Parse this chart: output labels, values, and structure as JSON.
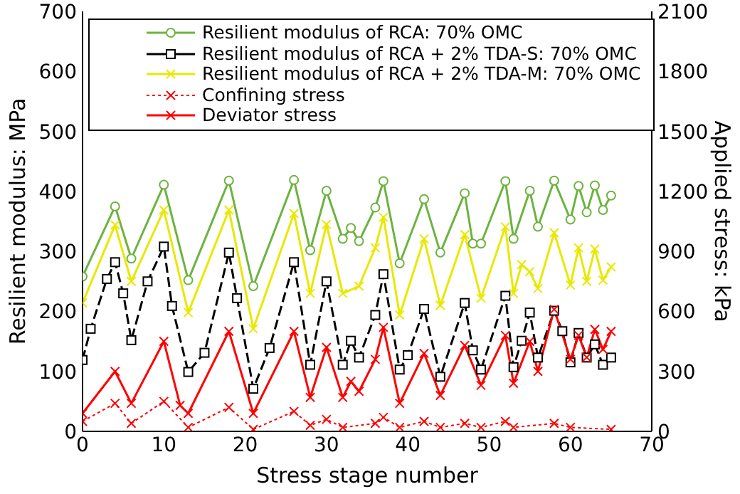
{
  "chart_data": {
    "type": "line",
    "xlabel": "Stress stage number",
    "ylabel": "Resilient modulus: MPa",
    "y2label": "Applied stress: kPa",
    "xlim": [
      0,
      70
    ],
    "xticks": [
      0,
      10,
      20,
      30,
      40,
      50,
      60,
      70
    ],
    "ylim": [
      0,
      700
    ],
    "yticks": [
      0,
      100,
      200,
      300,
      400,
      500,
      600,
      700
    ],
    "y2lim": [
      0,
      2100
    ],
    "y2ticks": [
      0,
      300,
      600,
      900,
      1200,
      1500,
      1800,
      2100
    ],
    "legend": "top",
    "grid": false,
    "series": [
      {
        "name": "Resilient modulus of RCA: 70% OMC",
        "color": "#6cb33f",
        "marker": "circle",
        "line_style": "solid",
        "x": [
          0,
          4,
          6,
          10,
          13,
          18,
          21,
          26,
          28,
          30,
          32,
          33,
          34,
          36,
          37,
          39,
          42,
          44,
          47,
          48,
          49,
          52,
          53,
          55,
          56,
          58,
          60,
          61,
          62,
          63,
          64,
          65
        ],
        "values": [
          258,
          375,
          288,
          411,
          252,
          418,
          242,
          419,
          302,
          401,
          321,
          339,
          317,
          373,
          417,
          280,
          387,
          298,
          397,
          313,
          313,
          417,
          321,
          401,
          341,
          418,
          353,
          409,
          365,
          410,
          369,
          393
        ]
      },
      {
        "name": "Resilient modulus of RCA + 2% TDA-S: 70% OMC",
        "color": "#000000",
        "marker": "square",
        "line_style": "dashed",
        "x": [
          0,
          1,
          3,
          4,
          5,
          6,
          8,
          10,
          11,
          13,
          15,
          18,
          19,
          21,
          23,
          26,
          28,
          30,
          32,
          33,
          34,
          36,
          37,
          39,
          40,
          42,
          44,
          47,
          48,
          49,
          52,
          53,
          54,
          55,
          56,
          58,
          59,
          60,
          61,
          62,
          63,
          64,
          65
        ],
        "values": [
          119,
          171,
          254,
          282,
          230,
          152,
          250,
          308,
          209,
          99,
          131,
          298,
          222,
          71,
          139,
          282,
          111,
          250,
          111,
          151,
          123,
          194,
          262,
          103,
          127,
          204,
          91,
          214,
          135,
          103,
          226,
          107,
          151,
          198,
          123,
          201,
          167,
          115,
          164,
          123,
          145,
          111,
          123
        ]
      },
      {
        "name": "Resilient modulus of RCA + 2% TDA-M: 70% OMC",
        "color": "#e8e800",
        "marker": "cross",
        "line_style": "solid",
        "x": [
          0,
          4,
          6,
          10,
          13,
          18,
          21,
          26,
          28,
          30,
          32,
          34,
          36,
          37,
          39,
          42,
          44,
          47,
          49,
          52,
          53,
          54,
          55,
          56,
          58,
          60,
          61,
          62,
          63,
          64,
          65
        ],
        "values": [
          214,
          344,
          250,
          369,
          198,
          369,
          171,
          363,
          230,
          345,
          230,
          242,
          306,
          357,
          194,
          321,
          210,
          328,
          222,
          341,
          230,
          278,
          266,
          238,
          331,
          244,
          306,
          250,
          304,
          252,
          274
        ]
      },
      {
        "name": "Confining stress",
        "color": "#ff0000",
        "marker": "cross",
        "line_style": "dotted",
        "axis": "y2",
        "x": [
          0,
          4,
          6,
          10,
          13,
          18,
          21,
          26,
          28,
          30,
          32,
          36,
          37,
          39,
          42,
          44,
          47,
          49,
          52,
          53,
          58,
          60,
          65
        ],
        "values": [
          50,
          140,
          40,
          150,
          20,
          120,
          10,
          100,
          30,
          60,
          20,
          40,
          70,
          20,
          50,
          20,
          40,
          20,
          50,
          20,
          40,
          20,
          10
        ]
      },
      {
        "name": "Deviator stress",
        "color": "#ff0000",
        "marker": "cross",
        "line_style": "solid",
        "axis": "y2",
        "x": [
          0,
          4,
          6,
          10,
          12,
          13,
          18,
          21,
          26,
          28,
          30,
          32,
          33,
          34,
          36,
          37,
          39,
          42,
          44,
          47,
          49,
          52,
          53,
          55,
          56,
          58,
          60,
          61,
          62,
          63,
          64,
          65
        ],
        "values": [
          90,
          300,
          140,
          450,
          130,
          90,
          500,
          90,
          500,
          170,
          420,
          170,
          250,
          200,
          360,
          520,
          140,
          390,
          180,
          430,
          230,
          480,
          240,
          450,
          300,
          610,
          360,
          480,
          370,
          510,
          410,
          500
        ]
      }
    ]
  }
}
